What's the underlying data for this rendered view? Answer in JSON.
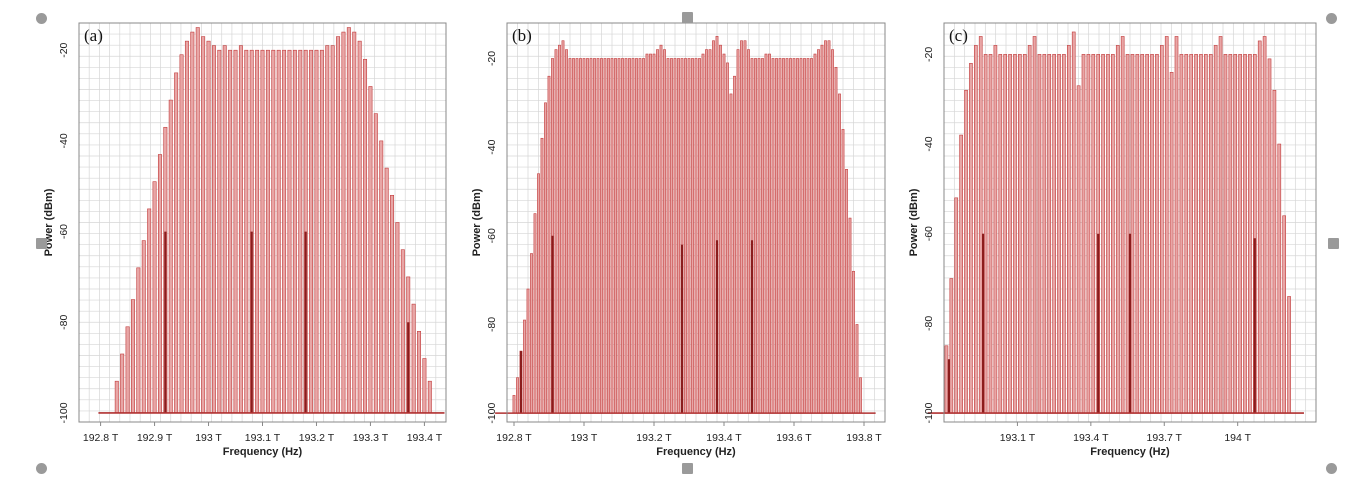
{
  "colors": {
    "bar_fill": "#e8a6a6",
    "bar_edge": "#c23b3b",
    "pump_line": "#8b1c1c",
    "baseline": "#b03030",
    "grid": "#d6d6d6",
    "frame": "#888888",
    "panel_bg": "#ffffff",
    "handle": "#9a9a9a"
  },
  "chart_data": [
    {
      "type": "bar",
      "panel_label": "(a)",
      "xlabel": "Frequency (Hz)",
      "ylabel": "Power (dBm)",
      "xlim": [
        192.76,
        193.44
      ],
      "ylim": [
        -102,
        -14
      ],
      "x_ticks": [
        {
          "value": 192.8,
          "label": "192.8 T"
        },
        {
          "value": 192.9,
          "label": "192.9 T"
        },
        {
          "value": 193.0,
          "label": "193 T"
        },
        {
          "value": 193.1,
          "label": "193.1 T"
        },
        {
          "value": 193.2,
          "label": "193.2 T"
        },
        {
          "value": 193.3,
          "label": "193.3 T"
        },
        {
          "value": 193.4,
          "label": "193.4 T"
        }
      ],
      "y_ticks": [
        {
          "value": -20,
          "label": "-20"
        },
        {
          "value": -40,
          "label": "-40"
        },
        {
          "value": -60,
          "label": "-60"
        },
        {
          "value": -80,
          "label": "-80"
        },
        {
          "value": -100,
          "label": "-100"
        }
      ],
      "floor": -100,
      "spectrum_start": 192.83,
      "spectrum_step": 0.01,
      "spectrum_values": [
        -93,
        -87,
        -81,
        -75,
        -68,
        -62,
        -55,
        -49,
        -43,
        -37,
        -31,
        -25,
        -21,
        -18,
        -16,
        -15,
        -17,
        -18,
        -19,
        -20,
        -19,
        -20,
        -20,
        -19,
        -20,
        -20,
        -20,
        -20,
        -20,
        -20,
        -20,
        -20,
        -20,
        -20,
        -20,
        -20,
        -20,
        -20,
        -20,
        -19,
        -19,
        -17,
        -16,
        -15,
        -16,
        -18,
        -22,
        -28,
        -34,
        -40,
        -46,
        -52,
        -58,
        -64,
        -70,
        -76,
        -82,
        -88,
        -93
      ],
      "pump_lines": [
        {
          "x": 192.92,
          "y": -60
        },
        {
          "x": 193.08,
          "y": -60
        },
        {
          "x": 193.18,
          "y": -60
        },
        {
          "x": 193.37,
          "y": -80
        }
      ]
    },
    {
      "type": "bar",
      "panel_label": "(b)",
      "xlabel": "Frequency (Hz)",
      "ylabel": "Power (dBm)",
      "xlim": [
        192.78,
        193.86
      ],
      "ylim": [
        -102,
        -12
      ],
      "x_ticks": [
        {
          "value": 192.8,
          "label": "192.8 T"
        },
        {
          "value": 193.0,
          "label": "193 T"
        },
        {
          "value": 193.2,
          "label": "193.2 T"
        },
        {
          "value": 193.4,
          "label": "193.4 T"
        },
        {
          "value": 193.6,
          "label": "193.6 T"
        },
        {
          "value": 193.8,
          "label": "193.8 T"
        }
      ],
      "y_ticks": [
        {
          "value": -20,
          "label": "-20"
        },
        {
          "value": -40,
          "label": "-40"
        },
        {
          "value": -60,
          "label": "-60"
        },
        {
          "value": -80,
          "label": "-80"
        },
        {
          "value": -100,
          "label": "-100"
        }
      ],
      "floor": -100,
      "spectrum_start": 192.8,
      "spectrum_step": 0.01,
      "spectrum_values": [
        -96,
        -92,
        -86,
        -79,
        -72,
        -64,
        -55,
        -46,
        -38,
        -30,
        -24,
        -20,
        -18,
        -17,
        -16,
        -18,
        -20,
        -20,
        -20,
        -20,
        -20,
        -20,
        -20,
        -20,
        -20,
        -20,
        -20,
        -20,
        -20,
        -20,
        -20,
        -20,
        -20,
        -20,
        -20,
        -20,
        -20,
        -20,
        -19,
        -19,
        -19,
        -18,
        -17,
        -18,
        -20,
        -20,
        -20,
        -20,
        -20,
        -20,
        -20,
        -20,
        -20,
        -20,
        -19,
        -18,
        -18,
        -16,
        -15,
        -17,
        -19,
        -21,
        -28,
        -24,
        -18,
        -16,
        -16,
        -18,
        -20,
        -20,
        -20,
        -20,
        -19,
        -19,
        -20,
        -20,
        -20,
        -20,
        -20,
        -20,
        -20,
        -20,
        -20,
        -20,
        -20,
        -20,
        -19,
        -18,
        -17,
        -16,
        -16,
        -18,
        -22,
        -28,
        -36,
        -45,
        -56,
        -68,
        -80,
        -92
      ],
      "pump_lines": [
        {
          "x": 192.82,
          "y": -86
        },
        {
          "x": 192.91,
          "y": -60
        },
        {
          "x": 193.28,
          "y": -62
        },
        {
          "x": 193.38,
          "y": -61
        },
        {
          "x": 193.48,
          "y": -61
        }
      ]
    },
    {
      "type": "bar",
      "panel_label": "(c)",
      "xlabel": "Frequency (Hz)",
      "ylabel": "Power (dBm)",
      "xlim": [
        192.8,
        194.32
      ],
      "ylim": [
        -102,
        -13
      ],
      "x_ticks": [
        {
          "value": 193.1,
          "label": "193.1 T"
        },
        {
          "value": 193.4,
          "label": "193.4 T"
        },
        {
          "value": 193.7,
          "label": "193.7 T"
        },
        {
          "value": 194.0,
          "label": "194 T"
        }
      ],
      "y_ticks": [
        {
          "value": -20,
          "label": "-20"
        },
        {
          "value": -40,
          "label": "-40"
        },
        {
          "value": -60,
          "label": "-60"
        },
        {
          "value": -80,
          "label": "-80"
        },
        {
          "value": -100,
          "label": "-100"
        }
      ],
      "floor": -100,
      "spectrum_start": 192.81,
      "spectrum_step": 0.02,
      "spectrum_values": [
        -85,
        -70,
        -52,
        -38,
        -28,
        -22,
        -18,
        -16,
        -20,
        -20,
        -18,
        -20,
        -20,
        -20,
        -20,
        -20,
        -20,
        -18,
        -16,
        -20,
        -20,
        -20,
        -20,
        -20,
        -20,
        -18,
        -15,
        -27,
        -20,
        -20,
        -20,
        -20,
        -20,
        -20,
        -20,
        -18,
        -16,
        -20,
        -20,
        -20,
        -20,
        -20,
        -20,
        -20,
        -18,
        -16,
        -24,
        -16,
        -20,
        -20,
        -20,
        -20,
        -20,
        -20,
        -20,
        -18,
        -16,
        -20,
        -20,
        -20,
        -20,
        -20,
        -20,
        -20,
        -17,
        -16,
        -21,
        -28,
        -40,
        -56,
        -74
      ],
      "pump_lines": [
        {
          "x": 192.82,
          "y": -88
        },
        {
          "x": 192.96,
          "y": -60
        },
        {
          "x": 193.43,
          "y": -60
        },
        {
          "x": 193.56,
          "y": -60
        },
        {
          "x": 194.07,
          "y": -61
        }
      ]
    }
  ]
}
